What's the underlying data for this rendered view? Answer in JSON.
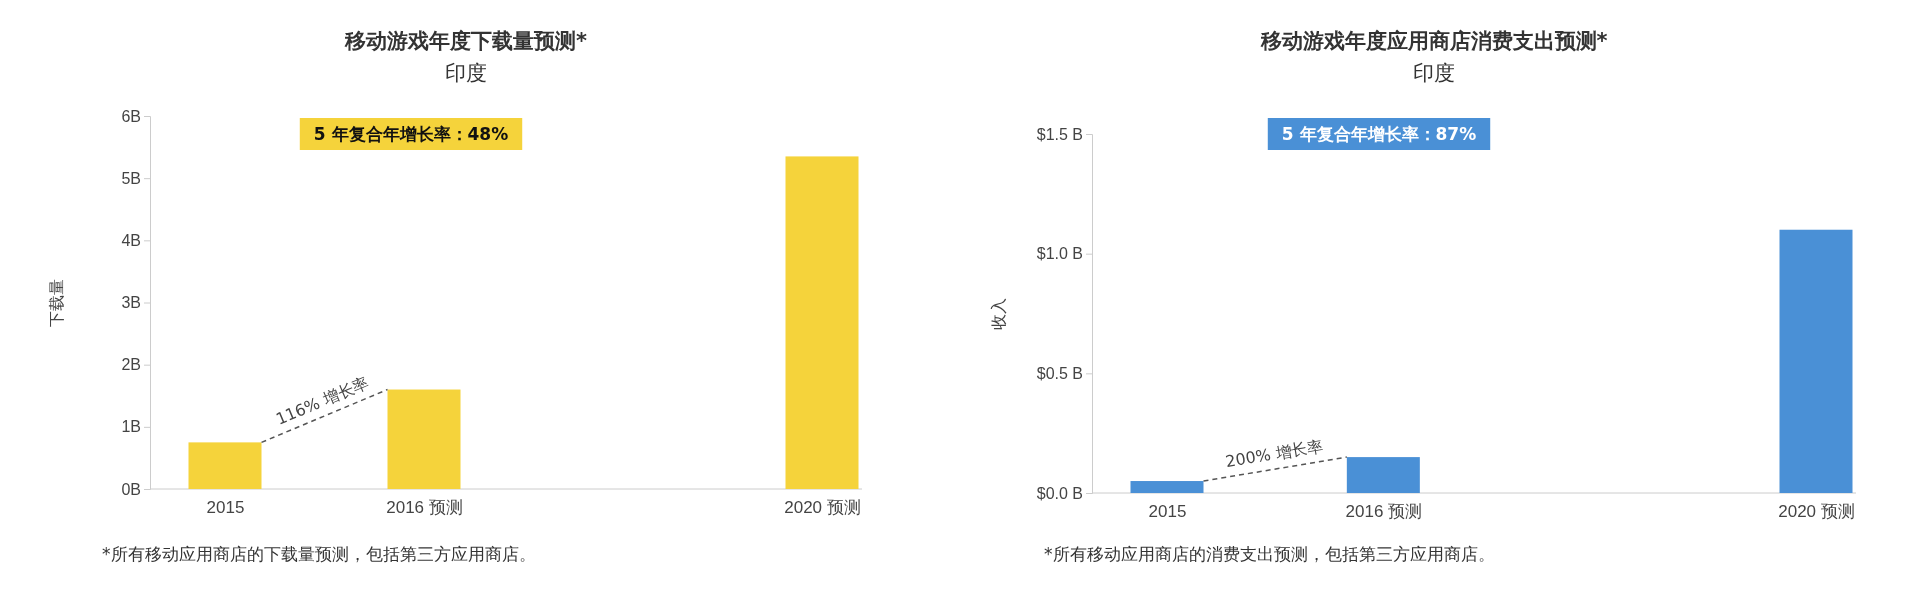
{
  "chart_data": [
    {
      "type": "bar",
      "title": "移动游戏年度下载量预测*",
      "subtitle": "印度",
      "ylabel": "下载量",
      "categories": [
        "2015",
        "2016 预测",
        null,
        "2020 预测"
      ],
      "series": [
        {
          "color": "#f5d33b",
          "values": [
            0.75,
            1.6,
            null,
            5.35
          ]
        }
      ],
      "ylim": [
        0,
        6
      ],
      "yticks": [
        {
          "value": 0,
          "label": "0B"
        },
        {
          "value": 1,
          "label": "1B"
        },
        {
          "value": 2,
          "label": "2B"
        },
        {
          "value": 3,
          "label": "3B"
        },
        {
          "value": 4,
          "label": "4B"
        },
        {
          "value": 5,
          "label": "5B"
        },
        {
          "value": 6,
          "label": "6B"
        }
      ],
      "annotations": [
        "5 年复合年增长率：48%",
        "116% 增长率",
        "*所有移动应用商店的下载量预测，包括第三方应用商店。"
      ]
    },
    {
      "type": "bar",
      "title": "移动游戏年度应用商店消费支出预测*",
      "subtitle": "印度",
      "ylabel": "收入",
      "categories": [
        "2015",
        "2016 预测",
        null,
        "2020 预测"
      ],
      "series": [
        {
          "color": "#4a90d6",
          "values": [
            0.05,
            0.15,
            null,
            1.1
          ]
        }
      ],
      "ylim": [
        0,
        1.5
      ],
      "yticks": [
        {
          "value": 0,
          "label": "$0.0 B"
        },
        {
          "value": 0.5,
          "label": "$0.5 B"
        },
        {
          "value": 1,
          "label": "$1.0 B"
        },
        {
          "value": 1.5,
          "label": "$1.5 B"
        }
      ],
      "annotations": [
        "5 年复合年增长率：87%",
        "200% 增长率",
        "*所有移动应用商店的消费支出预测，包括第三方应用商店。"
      ]
    }
  ]
}
